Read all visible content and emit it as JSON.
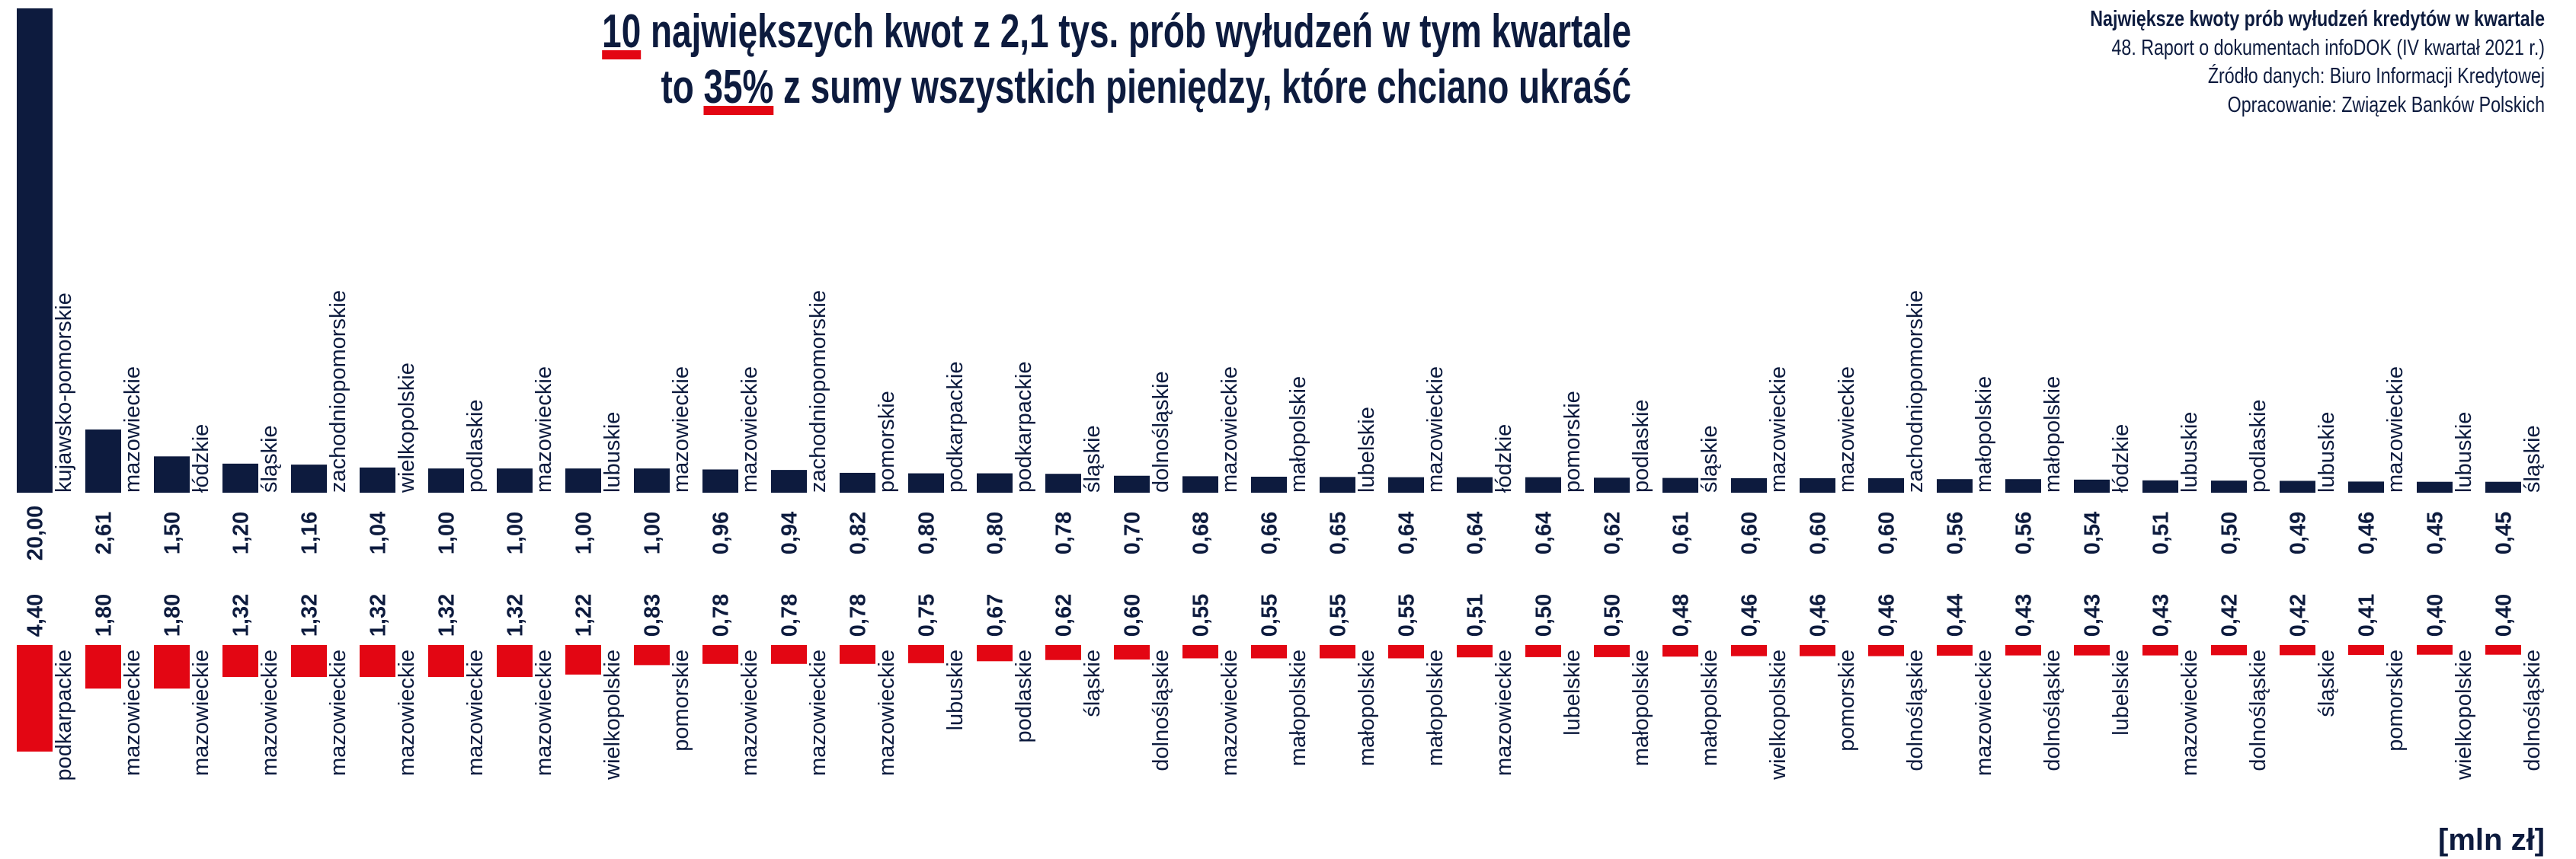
{
  "chart_data": {
    "type": "bar",
    "title": {
      "line1": {
        "highlight": "10",
        "text": " największych kwot z 2,1 tys. prób wyłudzeń w tym kwartale"
      },
      "line2": {
        "before": "to ",
        "highlight": "35%",
        "text": " z sumy wszystkich pieniędzy, które chciano ukraść"
      }
    },
    "notes": [
      "Największe kwoty prób wyłudzeń kredytów w kwartale",
      "48. Raport o dokumentach infoDOK (IV kwartał 2021 r.)",
      "Źródło danych: Biuro Informacji Kredytowej",
      "Opracowanie: Związek Banków Polskich"
    ],
    "unit": "[mln zł]",
    "ylim": [
      0,
      20
    ],
    "highlight_color": "#e30613",
    "series": [
      {
        "color": "#0d1b3e",
        "categories": [
          "kujawsko-pomorskie",
          "mazowieckie",
          "łódzkie",
          "śląskie",
          "zachodniopomorskie",
          "wielkopolskie",
          "podlaskie",
          "mazowieckie",
          "lubuskie",
          "mazowieckie",
          "mazowieckie",
          "zachodniopomorskie",
          "pomorskie",
          "podkarpackie",
          "podkarpackie",
          "śląskie",
          "dolnośląskie",
          "mazowieckie",
          "małopolskie",
          "lubelskie",
          "mazowieckie",
          "łódzkie",
          "pomorskie",
          "podlaskie",
          "śląskie",
          "mazowieckie",
          "mazowieckie",
          "zachodniopomorskie",
          "małopolskie",
          "małopolskie",
          "łódzkie",
          "lubuskie",
          "podlaskie",
          "lubuskie",
          "mazowieckie",
          "lubuskie",
          "śląskie"
        ],
        "values": [
          20.0,
          2.61,
          1.5,
          1.2,
          1.16,
          1.04,
          1.0,
          1.0,
          1.0,
          1.0,
          0.96,
          0.94,
          0.82,
          0.8,
          0.8,
          0.78,
          0.7,
          0.68,
          0.66,
          0.65,
          0.64,
          0.64,
          0.64,
          0.62,
          0.61,
          0.6,
          0.6,
          0.6,
          0.56,
          0.56,
          0.54,
          0.51,
          0.5,
          0.49,
          0.46,
          0.45,
          0.45
        ],
        "value_labels": [
          "20,00",
          "2,61",
          "1,50",
          "1,20",
          "1,16",
          "1,04",
          "1,00",
          "1,00",
          "1,00",
          "1,00",
          "0,96",
          "0,94",
          "0,82",
          "0,80",
          "0,80",
          "0,78",
          "0,70",
          "0,68",
          "0,66",
          "0,65",
          "0,64",
          "0,64",
          "0,64",
          "0,62",
          "0,61",
          "0,60",
          "0,60",
          "0,60",
          "0,56",
          "0,56",
          "0,54",
          "0,51",
          "0,50",
          "0,49",
          "0,46",
          "0,45",
          "0,45"
        ]
      },
      {
        "color": "#e30613",
        "categories": [
          "podkarpackie",
          "mazowieckie",
          "mazowieckie",
          "mazowieckie",
          "mazowieckie",
          "mazowieckie",
          "mazowieckie",
          "mazowieckie",
          "wielkopolskie",
          "pomorskie",
          "mazowieckie",
          "mazowieckie",
          "mazowieckie",
          "lubuskie",
          "podlaskie",
          "śląskie",
          "dolnośląskie",
          "mazowieckie",
          "małopolskie",
          "małopolskie",
          "małopolskie",
          "mazowieckie",
          "lubelskie",
          "małopolskie",
          "małopolskie",
          "wielkopolskie",
          "pomorskie",
          "dolnośląskie",
          "mazowieckie",
          "dolnośląskie",
          "lubelskie",
          "mazowieckie",
          "dolnośląskie",
          "śląskie",
          "pomorskie",
          "wielkopolskie",
          "dolnośląskie"
        ],
        "values": [
          4.4,
          1.8,
          1.8,
          1.32,
          1.32,
          1.32,
          1.32,
          1.32,
          1.22,
          0.83,
          0.78,
          0.78,
          0.78,
          0.75,
          0.67,
          0.62,
          0.6,
          0.55,
          0.55,
          0.55,
          0.55,
          0.51,
          0.5,
          0.5,
          0.48,
          0.46,
          0.46,
          0.46,
          0.44,
          0.43,
          0.43,
          0.43,
          0.42,
          0.42,
          0.41,
          0.4,
          0.4
        ],
        "value_labels": [
          "4,40",
          "1,80",
          "1,80",
          "1,32",
          "1,32",
          "1,32",
          "1,32",
          "1,32",
          "1,22",
          "0,83",
          "0,78",
          "0,78",
          "0,78",
          "0,75",
          "0,67",
          "0,62",
          "0,60",
          "0,55",
          "0,55",
          "0,55",
          "0,55",
          "0,51",
          "0,50",
          "0,50",
          "0,48",
          "0,46",
          "0,46",
          "0,46",
          "0,44",
          "0,43",
          "0,43",
          "0,43",
          "0,42",
          "0,42",
          "0,41",
          "0,40",
          "0,40"
        ]
      }
    ]
  }
}
